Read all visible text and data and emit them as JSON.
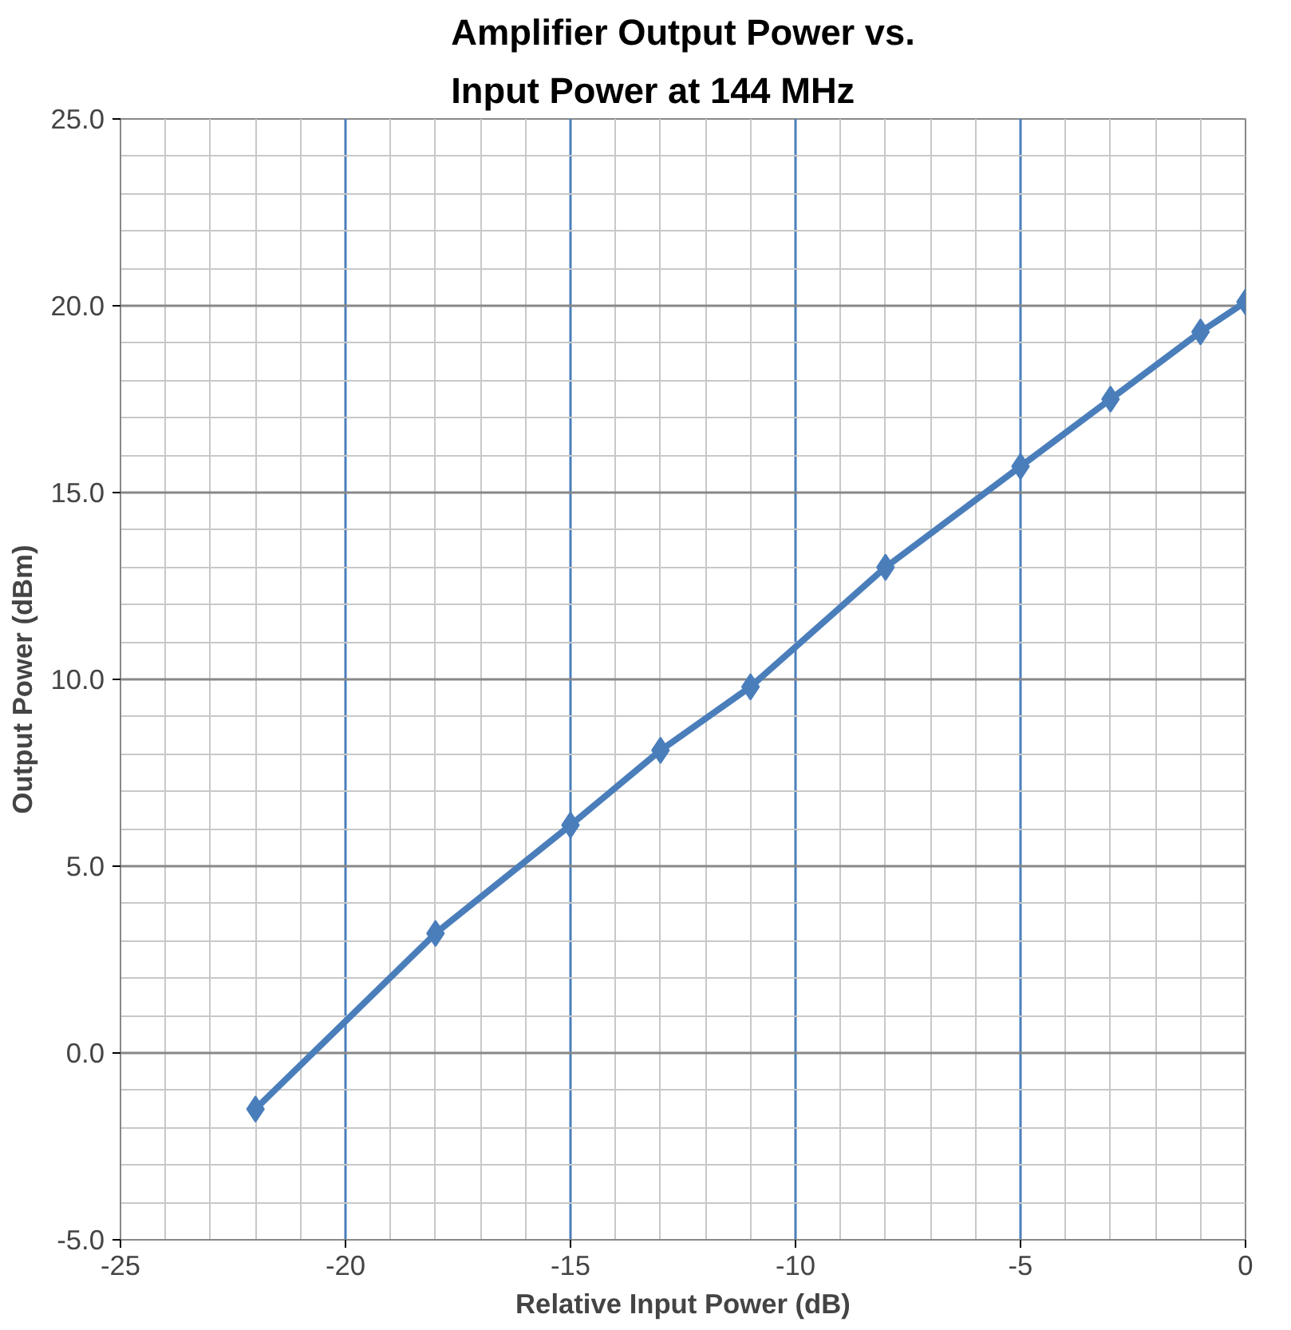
{
  "chart_data": {
    "type": "line",
    "title": "Amplifier Output Power vs.\nInput Power at 144 MHz",
    "xlabel": "Relative Input Power (dB)",
    "ylabel": "Output Power (dBm)",
    "x": [
      -22,
      -18,
      -15,
      -13,
      -11,
      -8,
      -5,
      -3,
      -1,
      0
    ],
    "series": [
      {
        "color": "#4a7ebb",
        "values": [
          -1.5,
          3.2,
          6.1,
          8.1,
          9.8,
          13.0,
          15.7,
          17.5,
          19.3,
          20.1
        ]
      }
    ],
    "xlim": [
      -25,
      0
    ],
    "ylim": [
      -5,
      25
    ],
    "xticks": [
      -25,
      -20,
      -15,
      -10,
      -5,
      0
    ],
    "yticks": [
      {
        "value": -5,
        "label": "-5.0"
      },
      {
        "value": 0,
        "label": "0.0"
      },
      {
        "value": 5,
        "label": "5.0"
      },
      {
        "value": 10,
        "label": "10.0"
      },
      {
        "value": 15,
        "label": "15.0"
      },
      {
        "value": 20,
        "label": "20.0"
      },
      {
        "value": 25,
        "label": "25.0"
      }
    ],
    "grid": true,
    "marker": "diamond",
    "line_style": "solid"
  }
}
